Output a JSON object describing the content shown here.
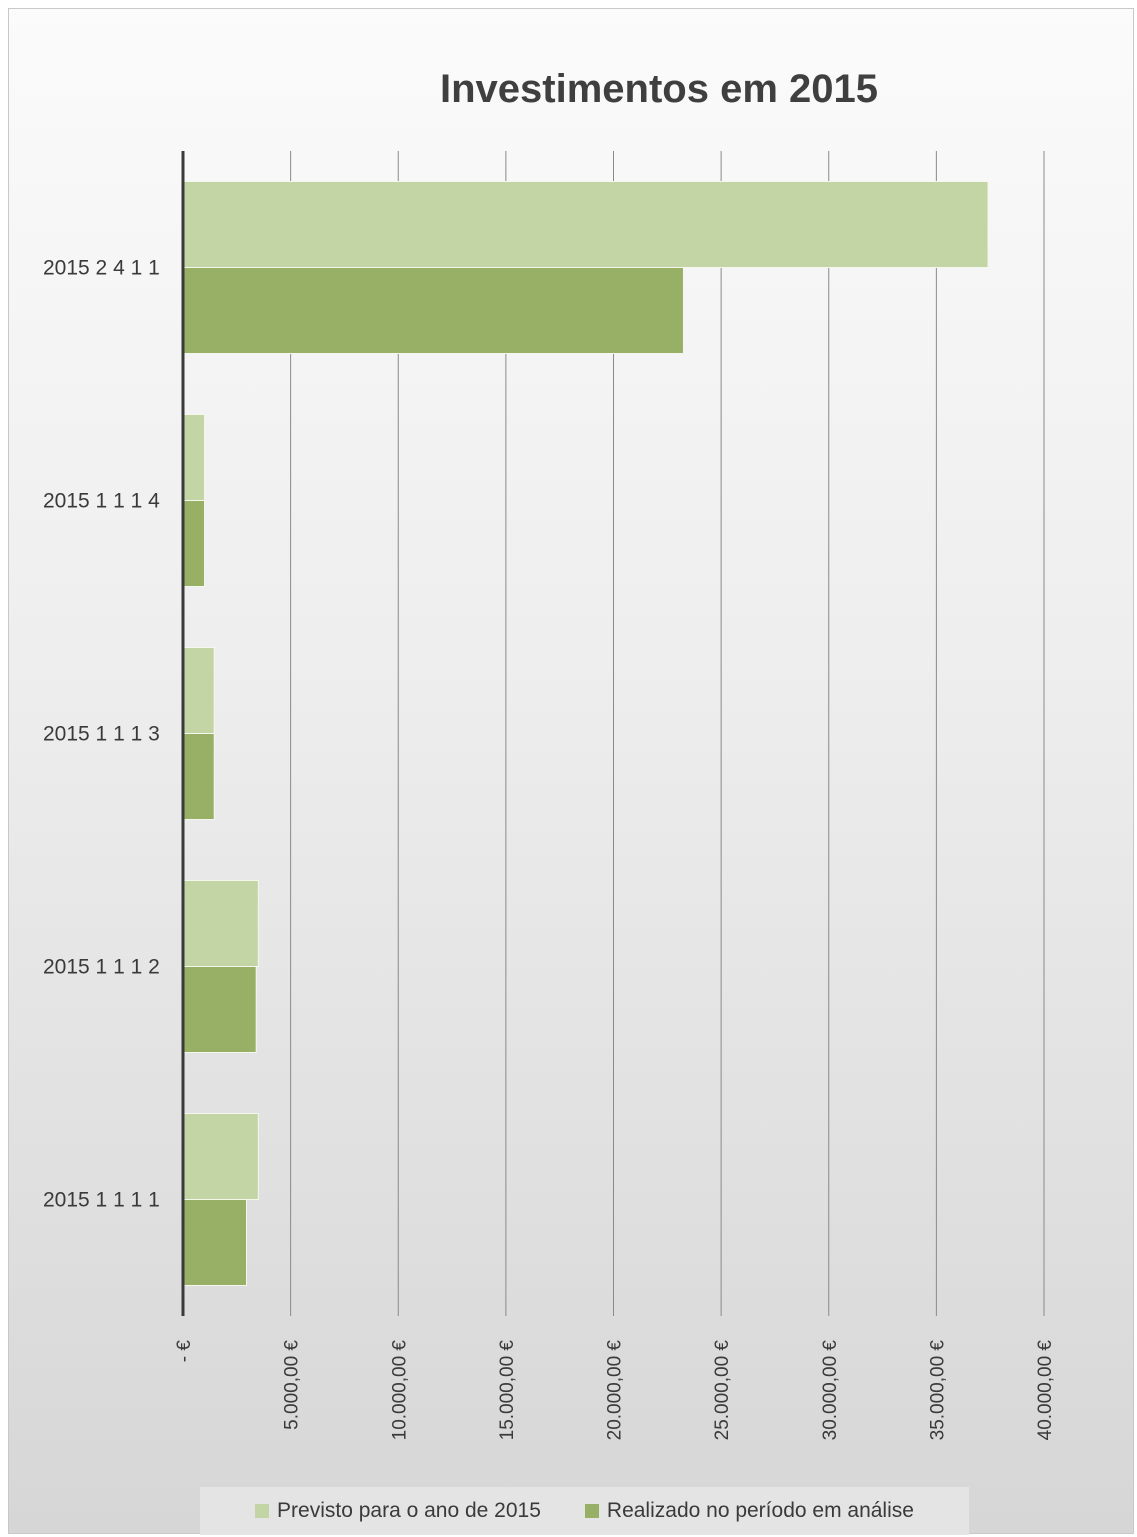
{
  "chart_data": {
    "type": "bar",
    "orientation": "horizontal",
    "title": "Investimentos em 2015",
    "categories": [
      "2015 2 4 1 1",
      "2015 1 1 1 4",
      "2015 1 1 1 3",
      "2015 1 1 1 2",
      "2015 1 1 1 1"
    ],
    "series": [
      {
        "name": "Previsto para o ano de 2015",
        "color": "#c3d5a5",
        "values": [
          37400,
          1000,
          1450,
          3500,
          3500
        ]
      },
      {
        "name": "Realizado no período em análise",
        "color": "#97b066",
        "values": [
          23250,
          1000,
          1450,
          3400,
          2950
        ]
      }
    ],
    "xlim": [
      0,
      40000
    ],
    "xticks": [
      0,
      5000,
      10000,
      15000,
      20000,
      25000,
      30000,
      35000,
      40000
    ],
    "xtick_labels": [
      "-   €",
      "5.000,00 €",
      "10.000,00 €",
      "15.000,00 €",
      "20.000,00 €",
      "25.000,00 €",
      "30.000,00 €",
      "35.000,00 €",
      "40.000,00 €"
    ],
    "grid": "vertical",
    "legend_position": "bottom"
  }
}
